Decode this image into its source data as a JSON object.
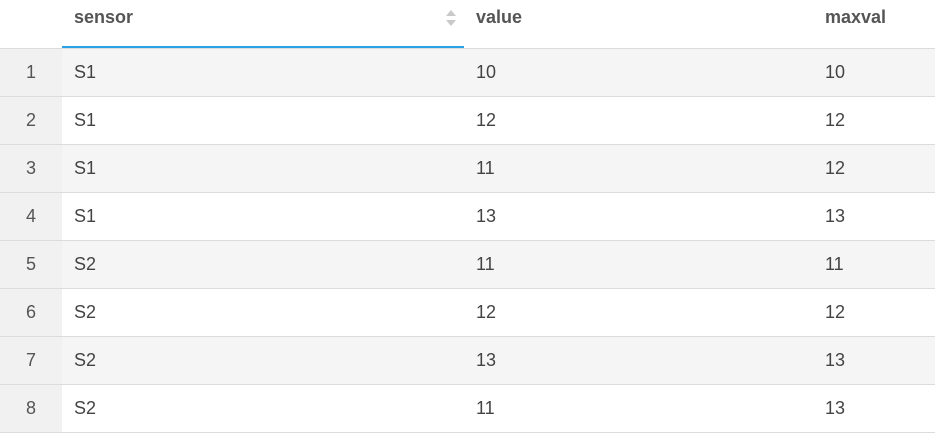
{
  "table": {
    "columns": [
      {
        "key": "sensor",
        "label": "sensor",
        "sortable": true
      },
      {
        "key": "value",
        "label": "value"
      },
      {
        "key": "maxval",
        "label": "maxval"
      }
    ],
    "rows": [
      {
        "index": "1",
        "sensor": "S1",
        "value": "10",
        "maxval": "10"
      },
      {
        "index": "2",
        "sensor": "S1",
        "value": "12",
        "maxval": "12"
      },
      {
        "index": "3",
        "sensor": "S1",
        "value": "11",
        "maxval": "12"
      },
      {
        "index": "4",
        "sensor": "S1",
        "value": "13",
        "maxval": "13"
      },
      {
        "index": "5",
        "sensor": "S2",
        "value": "11",
        "maxval": "11"
      },
      {
        "index": "6",
        "sensor": "S2",
        "value": "12",
        "maxval": "12"
      },
      {
        "index": "7",
        "sensor": "S2",
        "value": "13",
        "maxval": "13"
      },
      {
        "index": "8",
        "sensor": "S2",
        "value": "11",
        "maxval": "13"
      }
    ],
    "active_column_accent": "#2aa3e6",
    "sort_icon": "sort-updown-icon"
  }
}
